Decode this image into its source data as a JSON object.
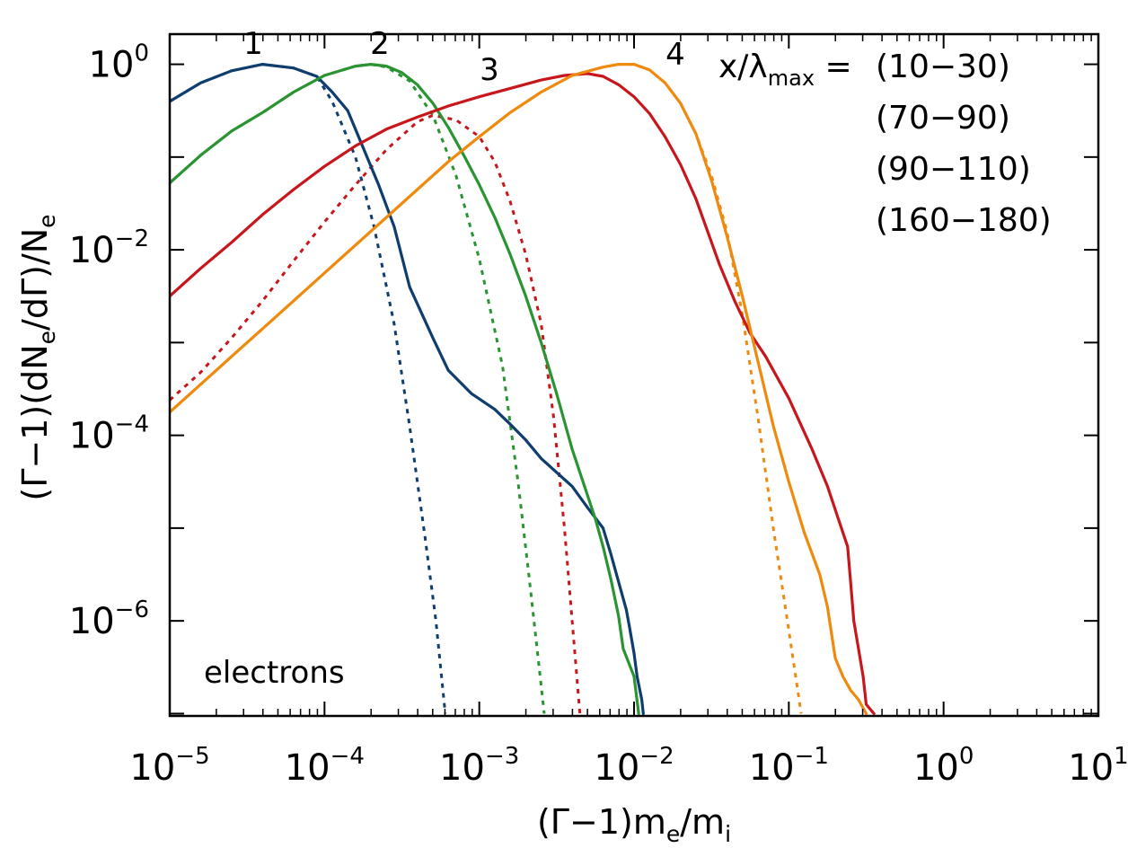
{
  "chart_data": {
    "type": "line",
    "xscale": "log",
    "yscale": "log",
    "xlim_exp": [
      -5,
      1
    ],
    "ylim_exp": [
      -7.025,
      0.325
    ],
    "xlabel": {
      "pre": "(Γ−1)m",
      "sub1": "e",
      "mid": "/m",
      "sub2": "i"
    },
    "ylabel": {
      "pre": "(Γ−1)(dN",
      "sub1": "e",
      "mid": "/dΓ)/N",
      "sub2": "e"
    },
    "x_tick_exponents": [
      "−5",
      "−4",
      "−3",
      "−2",
      "−1",
      "0",
      "1"
    ],
    "y_tick_exponents": [
      "0",
      "−2",
      "−4",
      "−6"
    ],
    "tick_base": "10",
    "legend": {
      "title_pre": "x/λ",
      "title_sub": "max",
      "title_post": " =",
      "entries": [
        "(10−30)",
        "(70−90)",
        "(90−110)",
        "(160−180)"
      ]
    },
    "annotation": "electrons",
    "curve_labels": [
      "1",
      "2",
      "3",
      "4"
    ],
    "series": [
      {
        "name": "(10−30)",
        "color": "#0e3d6e",
        "solid": [
          [
            -5,
            -0.4
          ],
          [
            -4.8,
            -0.2
          ],
          [
            -4.6,
            -0.07
          ],
          [
            -4.4,
            0.0
          ],
          [
            -4.2,
            -0.04
          ],
          [
            -4.05,
            -0.13
          ],
          [
            -3.95,
            -0.3
          ],
          [
            -3.85,
            -0.5
          ],
          [
            -3.75,
            -0.9
          ],
          [
            -3.65,
            -1.3
          ],
          [
            -3.55,
            -1.75
          ],
          [
            -3.45,
            -2.4
          ],
          [
            -3.3,
            -2.95
          ],
          [
            -3.2,
            -3.3
          ],
          [
            -3.05,
            -3.55
          ],
          [
            -2.9,
            -3.72
          ],
          [
            -2.8,
            -3.88
          ],
          [
            -2.7,
            -4.05
          ],
          [
            -2.6,
            -4.25
          ],
          [
            -2.5,
            -4.4
          ],
          [
            -2.4,
            -4.55
          ],
          [
            -2.3,
            -4.78
          ],
          [
            -2.2,
            -5.0
          ],
          [
            -2.15,
            -5.28
          ],
          [
            -2.1,
            -5.58
          ],
          [
            -2.05,
            -5.88
          ],
          [
            -2.03,
            -6.06
          ],
          [
            -2.0,
            -6.35
          ],
          [
            -1.98,
            -6.6
          ],
          [
            -1.95,
            -6.85
          ],
          [
            -1.94,
            -7.0
          ]
        ],
        "dotted": [
          [
            -5,
            -0.4
          ],
          [
            -4.8,
            -0.2
          ],
          [
            -4.6,
            -0.07
          ],
          [
            -4.4,
            0.0
          ],
          [
            -4.2,
            -0.04
          ],
          [
            -4.05,
            -0.13
          ],
          [
            -3.95,
            -0.4
          ],
          [
            -3.8,
            -1.0
          ],
          [
            -3.68,
            -1.75
          ],
          [
            -3.55,
            -2.8
          ],
          [
            -3.45,
            -3.9
          ],
          [
            -3.35,
            -5.1
          ],
          [
            -3.28,
            -6.0
          ],
          [
            -3.22,
            -7.0
          ]
        ]
      },
      {
        "name": "(70−90)",
        "color": "#2a9432",
        "solid": [
          [
            -5,
            -1.28
          ],
          [
            -4.8,
            -0.98
          ],
          [
            -4.6,
            -0.72
          ],
          [
            -4.4,
            -0.52
          ],
          [
            -4.2,
            -0.3
          ],
          [
            -4.0,
            -0.12
          ],
          [
            -3.8,
            -0.02
          ],
          [
            -3.7,
            0.0
          ],
          [
            -3.6,
            -0.02
          ],
          [
            -3.5,
            -0.09
          ],
          [
            -3.4,
            -0.22
          ],
          [
            -3.3,
            -0.42
          ],
          [
            -3.2,
            -0.68
          ],
          [
            -3.1,
            -0.98
          ],
          [
            -3.0,
            -1.3
          ],
          [
            -2.9,
            -1.65
          ],
          [
            -2.8,
            -2.05
          ],
          [
            -2.7,
            -2.5
          ],
          [
            -2.6,
            -3.0
          ],
          [
            -2.5,
            -3.55
          ],
          [
            -2.4,
            -4.15
          ],
          [
            -2.3,
            -4.65
          ],
          [
            -2.25,
            -4.9
          ],
          [
            -2.2,
            -5.2
          ],
          [
            -2.15,
            -5.55
          ],
          [
            -2.1,
            -5.95
          ],
          [
            -2.07,
            -6.3
          ],
          [
            -2.0,
            -6.6
          ],
          [
            -1.97,
            -7.0
          ]
        ],
        "dotted": [
          [
            -5,
            -1.28
          ],
          [
            -4.8,
            -0.98
          ],
          [
            -4.6,
            -0.72
          ],
          [
            -4.4,
            -0.52
          ],
          [
            -4.2,
            -0.3
          ],
          [
            -4.0,
            -0.12
          ],
          [
            -3.8,
            -0.02
          ],
          [
            -3.7,
            0.0
          ],
          [
            -3.6,
            -0.03
          ],
          [
            -3.45,
            -0.18
          ],
          [
            -3.3,
            -0.55
          ],
          [
            -3.15,
            -1.2
          ],
          [
            -3.0,
            -2.1
          ],
          [
            -2.85,
            -3.25
          ],
          [
            -2.75,
            -4.5
          ],
          [
            -2.68,
            -5.5
          ],
          [
            -2.62,
            -6.4
          ],
          [
            -2.58,
            -7.0
          ]
        ]
      },
      {
        "name": "(90−110)",
        "color": "#c8171c",
        "solid": [
          [
            -5,
            -2.5
          ],
          [
            -4.8,
            -2.2
          ],
          [
            -4.6,
            -1.92
          ],
          [
            -4.4,
            -1.62
          ],
          [
            -4.2,
            -1.35
          ],
          [
            -4.0,
            -1.1
          ],
          [
            -3.8,
            -0.88
          ],
          [
            -3.6,
            -0.7
          ],
          [
            -3.4,
            -0.57
          ],
          [
            -3.2,
            -0.45
          ],
          [
            -3.0,
            -0.35
          ],
          [
            -2.8,
            -0.26
          ],
          [
            -2.6,
            -0.17
          ],
          [
            -2.45,
            -0.12
          ],
          [
            -2.3,
            -0.1
          ],
          [
            -2.2,
            -0.13
          ],
          [
            -2.1,
            -0.22
          ],
          [
            -2.0,
            -0.35
          ],
          [
            -1.9,
            -0.53
          ],
          [
            -1.8,
            -0.78
          ],
          [
            -1.7,
            -1.08
          ],
          [
            -1.6,
            -1.45
          ],
          [
            -1.45,
            -2.15
          ],
          [
            -1.35,
            -2.55
          ],
          [
            -1.25,
            -2.9
          ],
          [
            -1.15,
            -3.15
          ],
          [
            -1.0,
            -3.6
          ],
          [
            -0.85,
            -4.15
          ],
          [
            -0.75,
            -4.55
          ],
          [
            -0.7,
            -4.8
          ],
          [
            -0.62,
            -5.2
          ],
          [
            -0.6,
            -5.6
          ],
          [
            -0.58,
            -6.0
          ],
          [
            -0.55,
            -6.3
          ],
          [
            -0.52,
            -6.6
          ],
          [
            -0.5,
            -6.9
          ],
          [
            -0.45,
            -7.0
          ]
        ],
        "dotted": [
          [
            -5,
            -3.62
          ],
          [
            -4.8,
            -3.32
          ],
          [
            -4.6,
            -2.95
          ],
          [
            -4.4,
            -2.55
          ],
          [
            -4.2,
            -2.12
          ],
          [
            -4.0,
            -1.7
          ],
          [
            -3.8,
            -1.3
          ],
          [
            -3.6,
            -0.92
          ],
          [
            -3.4,
            -0.62
          ],
          [
            -3.3,
            -0.55
          ],
          [
            -3.15,
            -0.6
          ],
          [
            -3.0,
            -0.78
          ],
          [
            -2.9,
            -1.05
          ],
          [
            -2.8,
            -1.48
          ],
          [
            -2.7,
            -2.05
          ],
          [
            -2.6,
            -2.8
          ],
          [
            -2.52,
            -3.8
          ],
          [
            -2.45,
            -5.0
          ],
          [
            -2.4,
            -6.0
          ],
          [
            -2.35,
            -7.0
          ]
        ]
      },
      {
        "name": "(160−180)",
        "color": "#ee8a0e",
        "solid": [
          [
            -5,
            -3.75
          ],
          [
            -4.8,
            -3.45
          ],
          [
            -4.6,
            -3.15
          ],
          [
            -4.4,
            -2.85
          ],
          [
            -4.2,
            -2.55
          ],
          [
            -4.0,
            -2.25
          ],
          [
            -3.8,
            -1.95
          ],
          [
            -3.6,
            -1.65
          ],
          [
            -3.4,
            -1.35
          ],
          [
            -3.2,
            -1.05
          ],
          [
            -3.0,
            -0.78
          ],
          [
            -2.8,
            -0.52
          ],
          [
            -2.6,
            -0.3
          ],
          [
            -2.4,
            -0.12
          ],
          [
            -2.2,
            -0.03
          ],
          [
            -2.1,
            0.0
          ],
          [
            -2.0,
            0.0
          ],
          [
            -1.9,
            -0.06
          ],
          [
            -1.8,
            -0.2
          ],
          [
            -1.7,
            -0.42
          ],
          [
            -1.6,
            -0.75
          ],
          [
            -1.5,
            -1.25
          ],
          [
            -1.4,
            -1.85
          ],
          [
            -1.3,
            -2.5
          ],
          [
            -1.2,
            -3.2
          ],
          [
            -1.1,
            -3.9
          ],
          [
            -1.0,
            -4.5
          ],
          [
            -0.9,
            -5.05
          ],
          [
            -0.8,
            -5.5
          ],
          [
            -0.75,
            -5.85
          ],
          [
            -0.7,
            -6.4
          ],
          [
            -0.65,
            -6.6
          ],
          [
            -0.6,
            -6.75
          ],
          [
            -0.55,
            -6.85
          ],
          [
            -0.5,
            -7.0
          ]
        ],
        "dotted": [
          [
            -5,
            -3.75
          ],
          [
            -4.8,
            -3.45
          ],
          [
            -4.6,
            -3.15
          ],
          [
            -4.4,
            -2.85
          ],
          [
            -4.2,
            -2.55
          ],
          [
            -4.0,
            -2.25
          ],
          [
            -3.8,
            -1.95
          ],
          [
            -3.6,
            -1.65
          ],
          [
            -3.4,
            -1.35
          ],
          [
            -3.2,
            -1.05
          ],
          [
            -3.0,
            -0.78
          ],
          [
            -2.8,
            -0.52
          ],
          [
            -2.6,
            -0.3
          ],
          [
            -2.4,
            -0.12
          ],
          [
            -2.2,
            -0.03
          ],
          [
            -2.1,
            0.0
          ],
          [
            -2.0,
            0.0
          ],
          [
            -1.9,
            -0.06
          ],
          [
            -1.8,
            -0.2
          ],
          [
            -1.7,
            -0.42
          ],
          [
            -1.6,
            -0.75
          ],
          [
            -1.5,
            -1.2
          ],
          [
            -1.4,
            -1.8
          ],
          [
            -1.3,
            -2.7
          ],
          [
            -1.2,
            -3.8
          ],
          [
            -1.1,
            -5.0
          ],
          [
            -1.0,
            -6.1
          ],
          [
            -0.92,
            -7.0
          ]
        ]
      }
    ]
  }
}
